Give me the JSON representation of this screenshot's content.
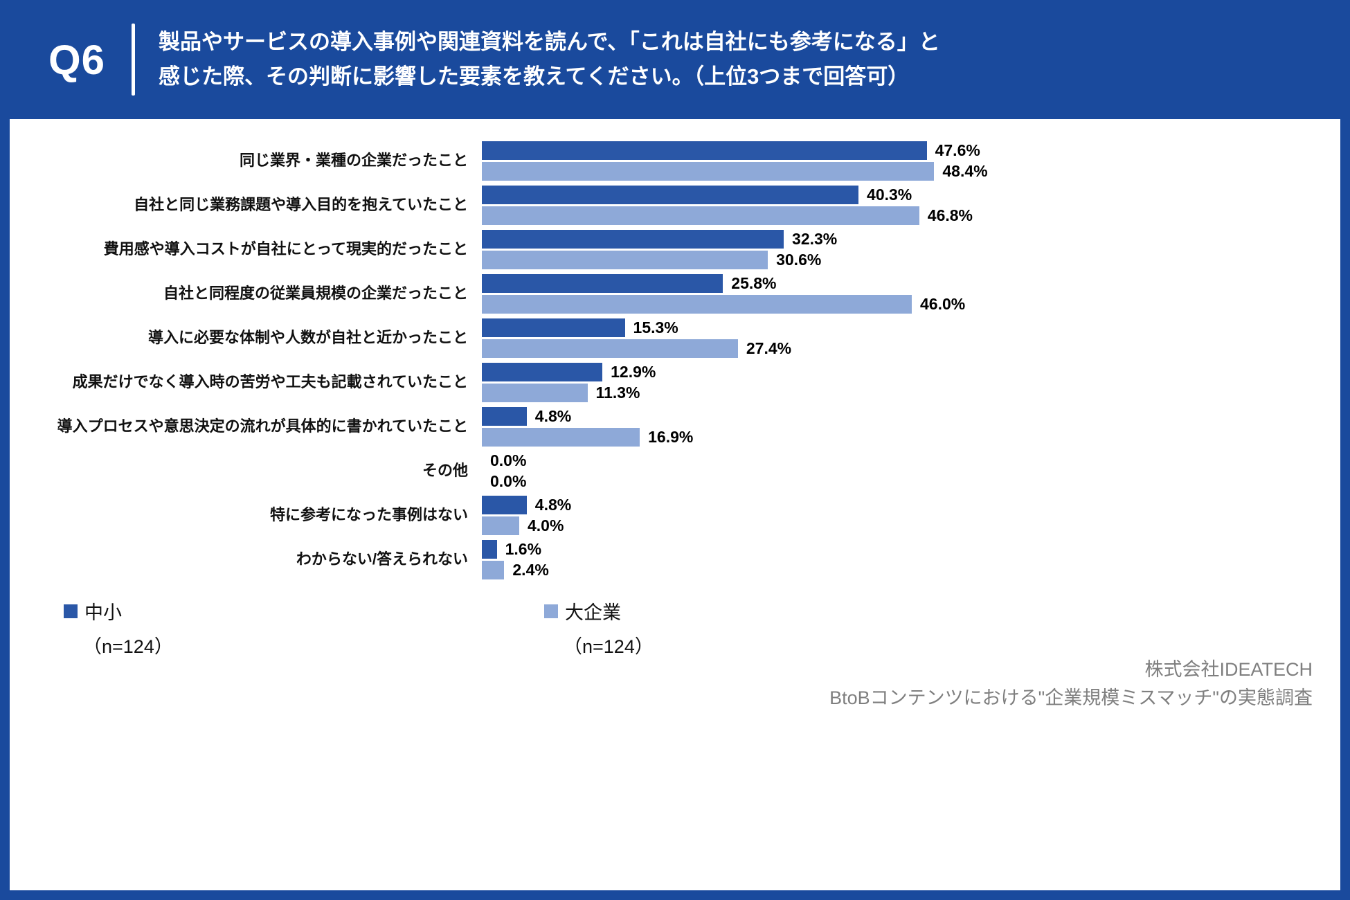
{
  "header": {
    "q_label": "Q6",
    "title_line1": "製品やサービスの導入事例や関連資料を読んで、「これは自社にも参考になる」と",
    "title_line2": "感じた際、その判断に影響した要素を教えてください。（上位3つまで回答可）"
  },
  "colors": {
    "background": "#1a4a9d",
    "bar_primary": "#2a57a7",
    "bar_secondary": "#8ea9d8"
  },
  "chart_data": {
    "type": "bar",
    "orientation": "horizontal",
    "title": "Q6 製品やサービスの導入事例や関連資料を読んで、「これは自社にも参考になる」と感じた際、その判断に影響した要素を教えてください。（上位3つまで回答可）",
    "value_suffix": "%",
    "xlim": [
      0,
      50
    ],
    "grid": false,
    "legend_position": "bottom",
    "categories": [
      "同じ業界・業種の企業だったこと",
      "自社と同じ業務課題や導入目的を抱えていたこと",
      "費用感や導入コストが自社にとって現実的だったこと",
      "自社と同程度の従業員規模の企業だったこと",
      "導入に必要な体制や人数が自社と近かったこと",
      "成果だけでなく導入時の苦労や工夫も記載されていたこと",
      "導入プロセスや意思決定の流れが具体的に書かれていたこと",
      "その他",
      "特に参考になった事例はない",
      "わからない/答えられない"
    ],
    "series": [
      {
        "name": "中小",
        "n_label": "（n=124）",
        "color": "#2a57a7",
        "values": [
          47.6,
          40.3,
          32.3,
          25.8,
          15.3,
          12.9,
          4.8,
          0.0,
          4.8,
          1.6
        ]
      },
      {
        "name": "大企業",
        "n_label": "（n=124）",
        "color": "#8ea9d8",
        "values": [
          48.4,
          46.8,
          30.6,
          46.0,
          27.4,
          11.3,
          16.9,
          0.0,
          4.0,
          2.4
        ]
      }
    ]
  },
  "footer": {
    "company": "株式会社IDEATECH",
    "survey": "BtoBコンテンツにおける\"企業規模ミスマッチ\"の実態調査"
  }
}
